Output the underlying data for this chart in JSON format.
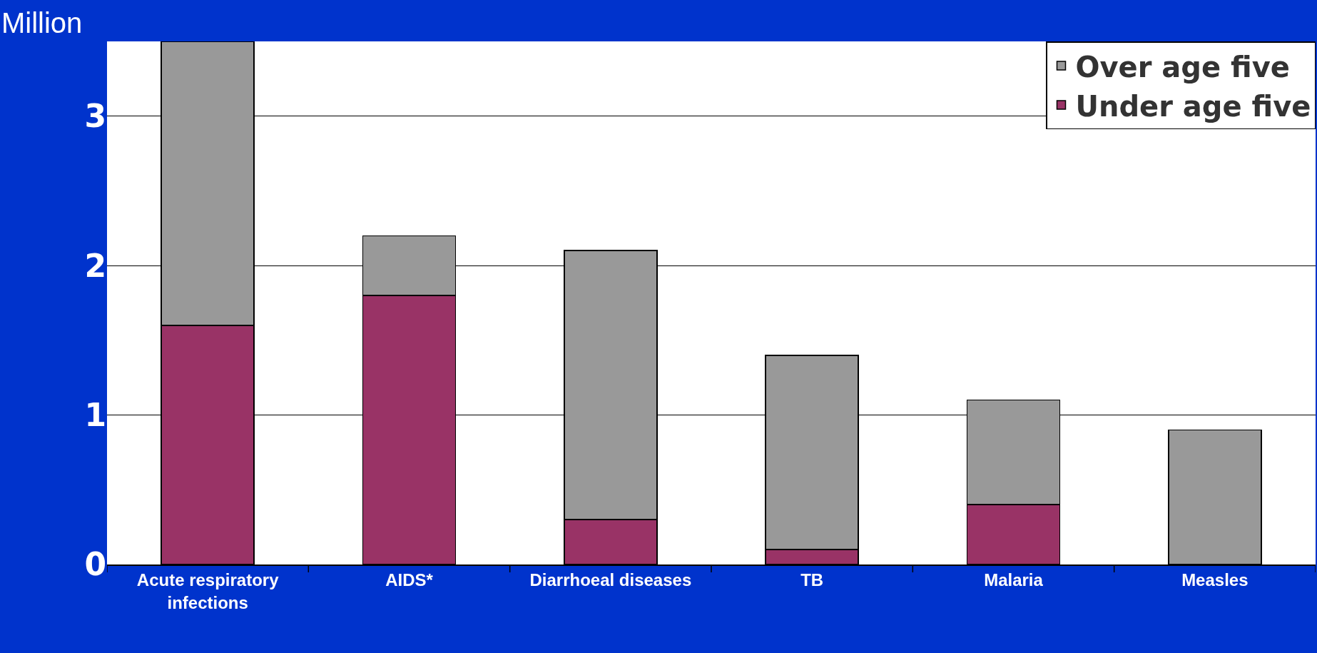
{
  "chart_data": {
    "type": "bar",
    "ylabel": "Million",
    "stacked": true,
    "categories": [
      "Acute respiratory infections",
      "AIDS*",
      "Diarrhoeal diseases",
      "TB",
      "Malaria",
      "Measles"
    ],
    "series": [
      {
        "name": "Under age five",
        "color": "#993366",
        "values": [
          1.6,
          1.8,
          0.3,
          0.1,
          0.4,
          0
        ]
      },
      {
        "name": "Over age five",
        "color": "#999999",
        "values": [
          1.9,
          0.4,
          1.8,
          1.3,
          0.7,
          0.9
        ]
      }
    ],
    "ylim": [
      0,
      3.5
    ],
    "yticks": [
      0,
      1,
      2,
      3
    ],
    "grid": "y",
    "legend": "top right"
  }
}
